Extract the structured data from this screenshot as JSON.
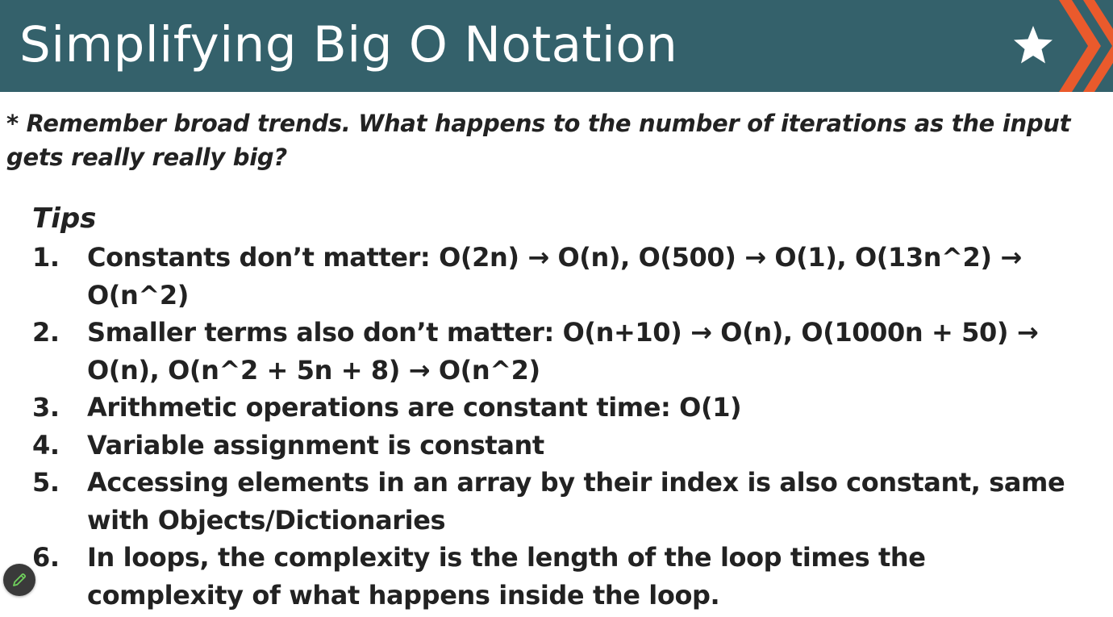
{
  "slide": {
    "title": "Simplifying Big O Notation",
    "note": "* Remember broad trends. What happens to the number of iterations as the input gets really really big?",
    "tips_heading": "Tips",
    "tips": [
      {
        "number": "1.",
        "text": "Constants don’t matter: O(2n) → O(n), O(500) → O(1), O(13n^2) → O(n^2)"
      },
      {
        "number": "2.",
        "text": "Smaller terms also don’t matter: O(n+10) → O(n), O(1000n + 50) → O(n), O(n^2 + 5n + 8) → O(n^2)"
      },
      {
        "number": "3.",
        "text": "Arithmetic operations are constant time: O(1)"
      },
      {
        "number": "4.",
        "text": "Variable assignment is constant"
      },
      {
        "number": "5.",
        "text": "Accessing elements in an array by their index is also constant, same with Objects/Dictionaries"
      },
      {
        "number": "6.",
        "text": "In loops, the complexity is the length of the loop times the complexity of what happens inside the loop."
      }
    ]
  },
  "icons": {
    "star": "star-icon",
    "chevrons": "double-chevron-right-icon",
    "pen": "pen-icon"
  },
  "colors": {
    "header_background": "#34616b",
    "title_text": "#ffffff",
    "accent_orange": "#ea5a2c",
    "body_text": "#222222",
    "pen_button": "#3a3a3a",
    "pen_icon": "#6fcf5c"
  }
}
